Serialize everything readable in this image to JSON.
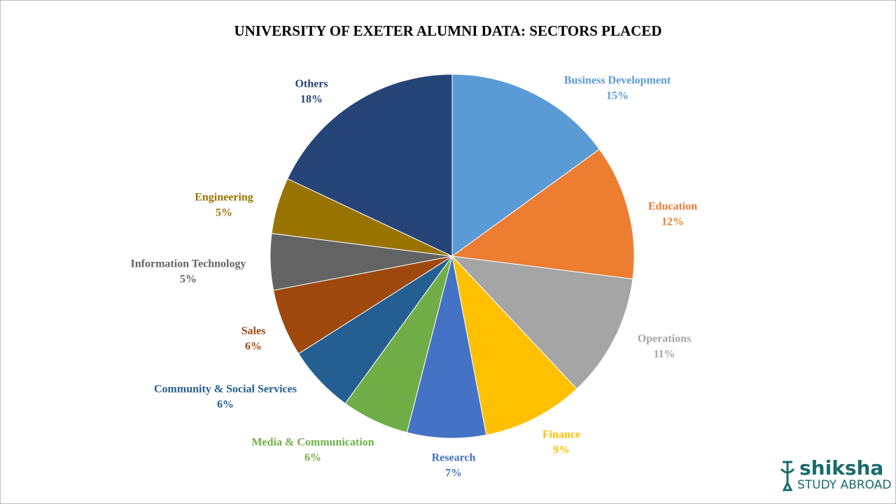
{
  "chart_data": {
    "type": "pie",
    "title": "UNIVERSITY OF EXETER ALUMNI DATA: SECTORS PLACED",
    "categories": [
      "Business Development",
      "Education",
      "Operations",
      "Finance",
      "Research",
      "Media & Communication",
      "Community & Social Services",
      "Sales",
      "Information Technology",
      "Engineering",
      "Others"
    ],
    "values": [
      15,
      12,
      11,
      9,
      7,
      6,
      6,
      6,
      5,
      5,
      18
    ],
    "value_labels": [
      "15%",
      "12%",
      "11%",
      "9%",
      "7%",
      "6%",
      "6%",
      "6%",
      "5%",
      "5%",
      "18%"
    ],
    "colors": [
      "#5b9bd5",
      "#ed7d31",
      "#a5a5a5",
      "#ffc000",
      "#4472c4",
      "#70ad47",
      "#255e91",
      "#9e480e",
      "#636363",
      "#997300",
      "#264478"
    ]
  },
  "logo": {
    "name": "shiksha",
    "tagline": "STUDY ABROAD"
  }
}
